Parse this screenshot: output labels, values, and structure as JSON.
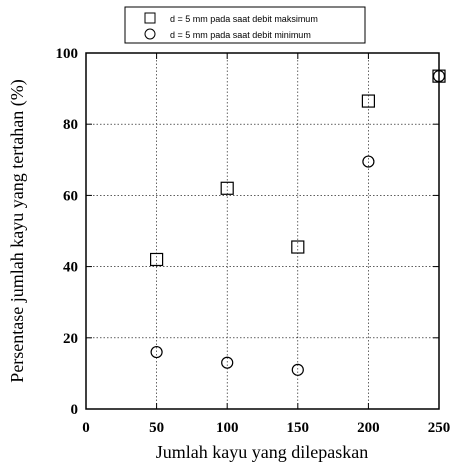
{
  "chart_data": {
    "type": "scatter",
    "title": "",
    "xlabel": "Jumlah kayu yang dilepaskan",
    "ylabel": "Persentase jumlah kayu yang tertahan (%)",
    "xlim": [
      0,
      250
    ],
    "ylim": [
      0,
      100
    ],
    "xticks": [
      0,
      50,
      100,
      150,
      200,
      250
    ],
    "yticks": [
      0,
      20,
      40,
      60,
      80,
      100
    ],
    "grid": true,
    "legend_position": "top-center",
    "series": [
      {
        "name": "d = 5 mm pada saat debit maksimum",
        "marker": "square",
        "x": [
          50,
          100,
          150,
          200,
          250
        ],
        "y": [
          42,
          62,
          45.5,
          86.5,
          93.5
        ]
      },
      {
        "name": "d = 5 mm pada saat debit minimum",
        "marker": "circle",
        "x": [
          50,
          100,
          150,
          200,
          250
        ],
        "y": [
          16,
          13,
          11,
          69.5,
          93.5
        ]
      }
    ]
  }
}
